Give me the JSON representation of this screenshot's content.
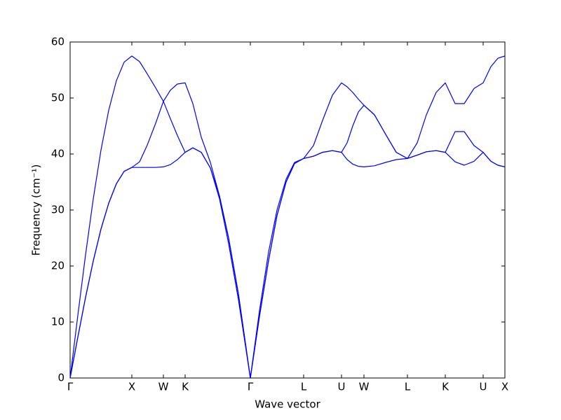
{
  "chart_data": {
    "type": "line",
    "xlabel": "Wave vector",
    "ylabel": "Frequency (cm⁻¹)",
    "x": [
      0,
      0.11,
      0.22,
      0.33,
      0.44,
      0.55,
      0.66,
      0.77,
      0.88,
      0.99,
      1.1,
      1.22,
      1.33,
      1.43,
      1.53,
      1.64,
      1.75,
      1.87,
      2.0,
      2.13,
      2.26,
      2.4,
      2.57,
      2.7,
      2.83,
      2.95,
      3.08,
      3.2,
      3.33,
      3.47,
      3.6,
      3.74,
      3.87,
      3.95,
      4.03,
      4.11,
      4.19,
      4.34,
      4.5,
      4.65,
      4.81,
      4.95,
      5.08,
      5.22,
      5.35,
      5.49,
      5.62,
      5.76,
      5.89,
      6.0,
      6.1,
      6.2
    ],
    "series": [
      {
        "color": "#0000ff",
        "values": [
          0,
          7.3,
          14.4,
          20.9,
          26.6,
          31.2,
          34.7,
          36.9,
          37.6,
          37.6,
          37.6,
          37.6,
          37.7,
          38.1,
          39.0,
          40.3,
          41.1,
          40.3,
          37.5,
          32,
          24,
          14,
          0,
          11,
          21,
          29,
          35,
          38.3,
          39.2,
          39.6,
          40.3,
          40.6,
          40.3,
          39,
          38.2,
          37.8,
          37.7,
          37.9,
          38.5,
          39,
          39.2,
          39.8,
          40.4,
          40.6,
          40.3,
          38.6,
          38,
          38.7,
          40.3,
          38.7,
          38,
          37.7
        ]
      },
      {
        "color": "#0000ff",
        "values": [
          0,
          7.3,
          14.4,
          20.9,
          26.6,
          31.2,
          34.7,
          36.9,
          37.6,
          38.6,
          41.6,
          45.5,
          49.4,
          46.3,
          43.3,
          40.3,
          41.1,
          40.3,
          37.5,
          32.5,
          25,
          15,
          0,
          11,
          21,
          29,
          35,
          38.3,
          39.2,
          39.6,
          40.3,
          40.6,
          40.3,
          42,
          45,
          47.5,
          48.7,
          47,
          43.5,
          40.3,
          39.2,
          39.8,
          40.4,
          40.6,
          40.3,
          44,
          44,
          41.5,
          40.3,
          38.7,
          38,
          37.7
        ]
      },
      {
        "color": "#0000ff",
        "values": [
          0,
          11.2,
          22.0,
          32.0,
          40.7,
          47.8,
          53.1,
          56.4,
          57.5,
          56.5,
          54.3,
          51.8,
          49.4,
          51.4,
          52.5,
          52.7,
          49,
          43,
          38.5,
          32.5,
          25,
          15,
          0,
          12,
          22.5,
          30,
          35.5,
          38.5,
          39.2,
          41.5,
          46,
          50.5,
          52.7,
          52,
          51,
          49.8,
          48.7,
          47,
          43.5,
          40.3,
          39.2,
          42,
          47,
          51,
          52.7,
          49,
          49,
          51.7,
          52.7,
          55.6,
          57.1,
          57.5
        ]
      }
    ],
    "xlim": [
      0,
      6.2
    ],
    "xticks": [
      {
        "value": 0,
        "label": "Γ"
      },
      {
        "value": 0.88,
        "label": "X"
      },
      {
        "value": 1.33,
        "label": "W"
      },
      {
        "value": 1.64,
        "label": "K"
      },
      {
        "value": 2.57,
        "label": "Γ"
      },
      {
        "value": 3.33,
        "label": "L"
      },
      {
        "value": 3.87,
        "label": "U"
      },
      {
        "value": 4.19,
        "label": "W"
      },
      {
        "value": 4.81,
        "label": "L"
      },
      {
        "value": 5.35,
        "label": "K"
      },
      {
        "value": 5.89,
        "label": "U"
      },
      {
        "value": 6.2,
        "label": "X"
      }
    ],
    "ylim": [
      0,
      60
    ],
    "yticks": [
      0,
      10,
      20,
      30,
      40,
      50,
      60
    ],
    "grid": false
  }
}
